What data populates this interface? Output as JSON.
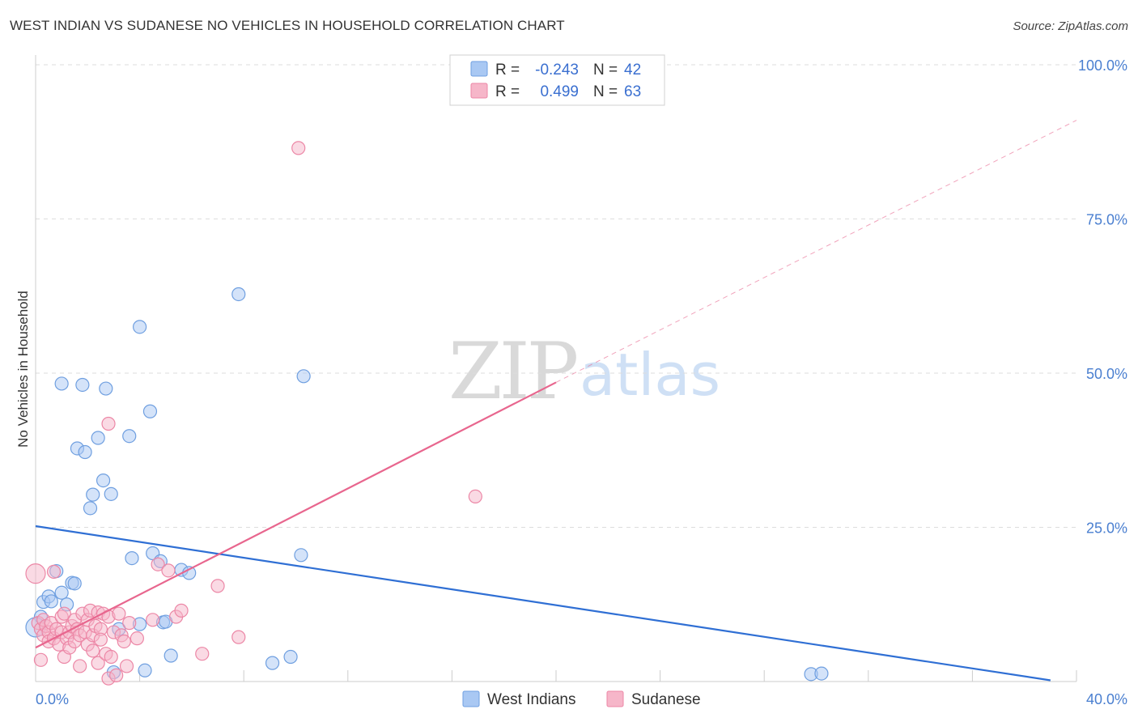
{
  "title": "WEST INDIAN VS SUDANESE NO VEHICLES IN HOUSEHOLD CORRELATION CHART",
  "source": "Source: ZipAtlas.com",
  "watermark": {
    "zip": "ZIP",
    "atlas": "atlas"
  },
  "colors": {
    "blue_fill": "#a9c8f3",
    "blue_stroke": "#6f9fe0",
    "blue_line": "#2f6fd4",
    "pink_fill": "#f6b6c9",
    "pink_stroke": "#ec87a6",
    "pink_line": "#e8668e",
    "grid": "#dddddd",
    "tick_text": "#4a7fd0"
  },
  "legend": {
    "rows": [
      {
        "series": "West Indians",
        "r_label": "R =",
        "r_value": "-0.243",
        "n_label": "N =",
        "n_value": "42",
        "color": "#a9c8f3"
      },
      {
        "series": "Sudanese",
        "r_label": "R =",
        "r_value": "0.499",
        "n_label": "N =",
        "n_value": "63",
        "color": "#f6b6c9"
      }
    ]
  },
  "chart_data": {
    "type": "scatter",
    "title": "WEST INDIAN VS SUDANESE NO VEHICLES IN HOUSEHOLD CORRELATION CHART",
    "xlabel": "",
    "ylabel": "No Vehicles in Household",
    "xlim": [
      0,
      40
    ],
    "ylim": [
      0,
      100
    ],
    "x_ticks": [
      "0.0%",
      "40.0%"
    ],
    "y_ticks": [
      {
        "value": 25,
        "label": "25.0%"
      },
      {
        "value": 50,
        "label": "50.0%"
      },
      {
        "value": 75,
        "label": "75.0%"
      },
      {
        "value": 100,
        "label": "100.0%"
      }
    ],
    "grid": true,
    "legend_position": "top-center",
    "series": [
      {
        "name": "West Indians",
        "color": "#a9c8f3",
        "r": -0.243,
        "n": 42,
        "points": [
          [
            0.2,
            10.5
          ],
          [
            0.3,
            12.9
          ],
          [
            0.5,
            13.8
          ],
          [
            0.6,
            13.0
          ],
          [
            0.8,
            17.9
          ],
          [
            1.0,
            14.4
          ],
          [
            1.0,
            48.3
          ],
          [
            1.2,
            12.5
          ],
          [
            1.4,
            16.0
          ],
          [
            1.5,
            15.9
          ],
          [
            1.6,
            37.8
          ],
          [
            1.8,
            48.1
          ],
          [
            1.9,
            37.2
          ],
          [
            2.1,
            28.1
          ],
          [
            2.2,
            30.3
          ],
          [
            2.4,
            39.5
          ],
          [
            2.6,
            32.6
          ],
          [
            2.7,
            47.5
          ],
          [
            2.9,
            30.4
          ],
          [
            3.0,
            1.5
          ],
          [
            3.2,
            8.5
          ],
          [
            3.6,
            39.8
          ],
          [
            3.7,
            20.0
          ],
          [
            4.0,
            9.3
          ],
          [
            4.0,
            57.5
          ],
          [
            4.2,
            1.8
          ],
          [
            4.4,
            43.8
          ],
          [
            4.5,
            20.8
          ],
          [
            4.8,
            19.5
          ],
          [
            4.9,
            9.6
          ],
          [
            5.0,
            9.7
          ],
          [
            5.2,
            4.2
          ],
          [
            5.6,
            18.1
          ],
          [
            5.9,
            17.6
          ],
          [
            7.8,
            62.8
          ],
          [
            9.1,
            3.0
          ],
          [
            9.8,
            4.0
          ],
          [
            10.2,
            20.5
          ],
          [
            10.3,
            49.5
          ],
          [
            29.8,
            1.2
          ],
          [
            30.2,
            1.3
          ],
          [
            0.0,
            8.8
          ]
        ]
      },
      {
        "name": "Sudanese",
        "color": "#f6b6c9",
        "r": 0.499,
        "n": 63,
        "points": [
          [
            0.0,
            17.5
          ],
          [
            0.1,
            9.5
          ],
          [
            0.2,
            8.5
          ],
          [
            0.3,
            10.0
          ],
          [
            0.3,
            7.5
          ],
          [
            0.4,
            9.0
          ],
          [
            0.5,
            8.0
          ],
          [
            0.5,
            6.5
          ],
          [
            0.6,
            9.5
          ],
          [
            0.7,
            7.0
          ],
          [
            0.7,
            17.8
          ],
          [
            0.8,
            8.5
          ],
          [
            0.9,
            6.0
          ],
          [
            1.0,
            10.5
          ],
          [
            1.0,
            8.0
          ],
          [
            1.1,
            11.0
          ],
          [
            1.1,
            4.0
          ],
          [
            1.2,
            7.0
          ],
          [
            1.3,
            8.0
          ],
          [
            1.3,
            5.5
          ],
          [
            1.4,
            9.0
          ],
          [
            1.5,
            6.5
          ],
          [
            1.5,
            10.0
          ],
          [
            1.6,
            8.5
          ],
          [
            1.7,
            7.5
          ],
          [
            1.7,
            2.5
          ],
          [
            1.8,
            11.0
          ],
          [
            1.9,
            8.0
          ],
          [
            2.0,
            10.0
          ],
          [
            2.0,
            6.0
          ],
          [
            2.1,
            11.5
          ],
          [
            2.2,
            5.0
          ],
          [
            2.2,
            7.5
          ],
          [
            2.3,
            9.0
          ],
          [
            2.4,
            11.2
          ],
          [
            2.4,
            3.0
          ],
          [
            2.5,
            8.5
          ],
          [
            2.5,
            6.8
          ],
          [
            2.6,
            11.0
          ],
          [
            2.7,
            4.5
          ],
          [
            2.8,
            10.5
          ],
          [
            2.8,
            0.5
          ],
          [
            2.9,
            4.0
          ],
          [
            3.0,
            8.0
          ],
          [
            3.1,
            1.0
          ],
          [
            3.2,
            11.0
          ],
          [
            3.3,
            7.5
          ],
          [
            3.4,
            6.5
          ],
          [
            3.5,
            2.5
          ],
          [
            3.6,
            9.5
          ],
          [
            2.8,
            41.8
          ],
          [
            3.9,
            7.0
          ],
          [
            4.5,
            10.0
          ],
          [
            4.7,
            19.0
          ],
          [
            5.1,
            18.0
          ],
          [
            5.4,
            10.5
          ],
          [
            5.6,
            11.5
          ],
          [
            6.4,
            4.5
          ],
          [
            7.0,
            15.5
          ],
          [
            7.8,
            7.2
          ],
          [
            10.1,
            86.5
          ],
          [
            16.9,
            30.0
          ],
          [
            0.2,
            3.5
          ]
        ]
      }
    ],
    "trend_lines": [
      {
        "series": "West Indians",
        "color": "#2f6fd4",
        "style": "solid",
        "x": [
          0,
          39
        ],
        "y": [
          25.2,
          0.2
        ]
      },
      {
        "series": "Sudanese",
        "color": "#e8668e",
        "style": "solid",
        "x": [
          0,
          20
        ],
        "y": [
          5.5,
          48.5
        ]
      },
      {
        "series": "Sudanese",
        "color": "#e8668e",
        "style": "dashed",
        "x": [
          20,
          40
        ],
        "y": [
          48.5,
          91.0
        ]
      }
    ]
  }
}
